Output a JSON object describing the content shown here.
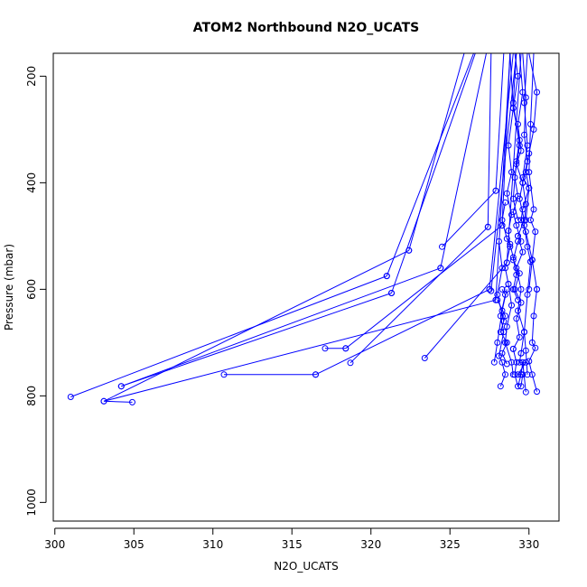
{
  "chart_data": {
    "type": "line",
    "title": "ATOM2 Northbound N2O_UCATS",
    "xlabel": "N2O_UCATS",
    "ylabel": "Pressure (mbar)",
    "xlim": [
      299.9,
      331.9
    ],
    "ylim": [
      1035,
      157
    ],
    "y_reversed": true,
    "xticks": [
      300,
      305,
      310,
      315,
      320,
      325,
      330
    ],
    "yticks": [
      200,
      400,
      600,
      800,
      1000
    ],
    "grid": false,
    "legend": "none",
    "series_color": "#0000ff",
    "marker": "open-circle",
    "series": [
      {
        "x": [
          330.0,
          330.5,
          330.3,
          330.0,
          329.8,
          330.0,
          329.6,
          329.5,
          329.8,
          330.2,
          330.5
        ],
        "y": [
          157,
          230,
          300,
          345,
          380,
          410,
          450,
          470,
          492,
          545,
          600
        ]
      },
      {
        "x": [
          330.5,
          330.3,
          330.2,
          330.4,
          330.0,
          330.2,
          330.5
        ],
        "y": [
          600,
          650,
          700,
          710,
          735,
          760,
          792
        ]
      },
      {
        "x": [
          301.0,
          321.0
        ],
        "y": [
          802,
          575
        ]
      },
      {
        "x": [
          321.0,
          326.5
        ],
        "y": [
          575,
          157
        ]
      },
      {
        "x": [
          303.1,
          327.9
        ],
        "y": [
          810,
          620
        ]
      },
      {
        "x": [
          327.9,
          328.8
        ],
        "y": [
          620,
          157
        ]
      },
      {
        "x": [
          304.9,
          303.1,
          322.4
        ],
        "y": [
          812,
          810,
          527
        ]
      },
      {
        "x": [
          322.4,
          325.9
        ],
        "y": [
          527,
          157
        ]
      },
      {
        "x": [
          304.2,
          321.3
        ],
        "y": [
          782,
          607
        ]
      },
      {
        "x": [
          321.3,
          326.6
        ],
        "y": [
          607,
          157
        ]
      },
      {
        "x": [
          304.2,
          324.4
        ],
        "y": [
          782,
          560
        ]
      },
      {
        "x": [
          324.4,
          327.3
        ],
        "y": [
          560,
          157
        ]
      },
      {
        "x": [
          310.7,
          316.5
        ],
        "y": [
          760,
          760
        ]
      },
      {
        "x": [
          316.5,
          327.5
        ],
        "y": [
          760,
          600
        ]
      },
      {
        "x": [
          327.5,
          329.0
        ],
        "y": [
          600,
          157
        ]
      },
      {
        "x": [
          317.1,
          318.4
        ],
        "y": [
          711,
          711
        ]
      },
      {
        "x": [
          318.4,
          328.3
        ],
        "y": [
          711,
          480
        ]
      },
      {
        "x": [
          328.3,
          328.8
        ],
        "y": [
          480,
          157
        ]
      },
      {
        "x": [
          318.7,
          327.4
        ],
        "y": [
          738,
          483
        ]
      },
      {
        "x": [
          327.4,
          327.6
        ],
        "y": [
          483,
          157
        ]
      },
      {
        "x": [
          323.4,
          328.6
        ],
        "y": [
          729,
          550
        ]
      },
      {
        "x": [
          328.6,
          329.5
        ],
        "y": [
          550,
          157
        ]
      },
      {
        "x": [
          324.5,
          327.9
        ],
        "y": [
          520,
          415
        ]
      },
      {
        "x": [
          327.9,
          328.4
        ],
        "y": [
          415,
          157
        ]
      },
      {
        "x": [
          327.6,
          329.2
        ],
        "y": [
          603,
          157
        ]
      },
      {
        "x": [
          328.5,
          328.3,
          328.6,
          328.8,
          329.0,
          329.2,
          329.0,
          329.3
        ],
        "y": [
          437,
          470,
          505,
          515,
          540,
          573,
          600,
          620
        ]
      },
      {
        "x": [
          328.0,
          328.5,
          328.2,
          328.6,
          328.3,
          328.6
        ],
        "y": [
          620,
          650,
          680,
          700,
          720,
          740
        ]
      },
      {
        "x": [
          329.2,
          329.0,
          329.4,
          329.1,
          329.3,
          329.0,
          329.2,
          329.5
        ],
        "y": [
          157,
          250,
          330,
          390,
          425,
          455,
          480,
          510
        ]
      },
      {
        "x": [
          329.3,
          329.0,
          329.4,
          329.1,
          329.5,
          329.2,
          329.4,
          329.0
        ],
        "y": [
          510,
          545,
          570,
          600,
          625,
          655,
          690,
          712
        ]
      },
      {
        "x": [
          329.0,
          329.2,
          329.1,
          329.3,
          329.5,
          329.6,
          329.8
        ],
        "y": [
          712,
          737,
          760,
          782,
          760,
          737,
          793
        ]
      },
      {
        "x": [
          329.6,
          329.8,
          329.7,
          329.9,
          329.6,
          329.8,
          329.7,
          329.9,
          330.1
        ],
        "y": [
          157,
          240,
          310,
          360,
          400,
          440,
          480,
          520,
          548
        ]
      },
      {
        "x": [
          330.1,
          329.9,
          329.7,
          329.8,
          329.9
        ],
        "y": [
          548,
          610,
          680,
          715,
          760
        ]
      },
      {
        "x": [
          328.8,
          329.0,
          328.7,
          328.9,
          328.6,
          328.9,
          328.7,
          328.8,
          328.5,
          328.7
        ],
        "y": [
          157,
          260,
          330,
          380,
          420,
          460,
          490,
          520,
          560,
          590
        ]
      },
      {
        "x": [
          328.7,
          328.9,
          328.6,
          328.5,
          328.9,
          329.0
        ],
        "y": [
          590,
          630,
          670,
          700,
          737,
          760
        ]
      },
      {
        "x": [
          329.4,
          329.6,
          329.3,
          329.5,
          329.2,
          329.6,
          329.4,
          329.7,
          329.3
        ],
        "y": [
          157,
          230,
          290,
          340,
          365,
          400,
          430,
          470,
          500
        ]
      },
      {
        "x": [
          329.3,
          329.6,
          329.2,
          329.5,
          329.3,
          329.7,
          329.5
        ],
        "y": [
          500,
          530,
          560,
          600,
          640,
          680,
          720
        ]
      },
      {
        "x": [
          329.5,
          329.4,
          329.8,
          329.3,
          329.6,
          329.5
        ],
        "y": [
          720,
          737,
          737,
          760,
          760,
          782
        ]
      },
      {
        "x": [
          330.3,
          330.1,
          330.0,
          330.3,
          330.1,
          330.4,
          330.2,
          330.0
        ],
        "y": [
          157,
          290,
          380,
          450,
          470,
          492,
          545,
          600
        ]
      },
      {
        "x": [
          328.3,
          328.5,
          328.2,
          328.4,
          328.1,
          328.3,
          328.5,
          328.2
        ],
        "y": [
          600,
          610,
          650,
          680,
          725,
          737,
          760,
          782
        ]
      },
      {
        "x": [
          328.1,
          328.3,
          328.0,
          328.4
        ],
        "y": [
          510,
          560,
          610,
          660
        ]
      },
      {
        "x": [
          327.8,
          328.0,
          328.3,
          328.6
        ],
        "y": [
          737,
          700,
          640,
          600
        ]
      },
      {
        "x": [
          329.1,
          329.3,
          329.0,
          329.4,
          329.2,
          329.0,
          329.3
        ],
        "y": [
          157,
          200,
          260,
          320,
          360,
          430,
          470
        ]
      },
      {
        "x": [
          329.9,
          329.7,
          329.9,
          329.6,
          330.0,
          329.8
        ],
        "y": [
          157,
          250,
          330,
          390,
          410,
          470
        ]
      }
    ]
  }
}
